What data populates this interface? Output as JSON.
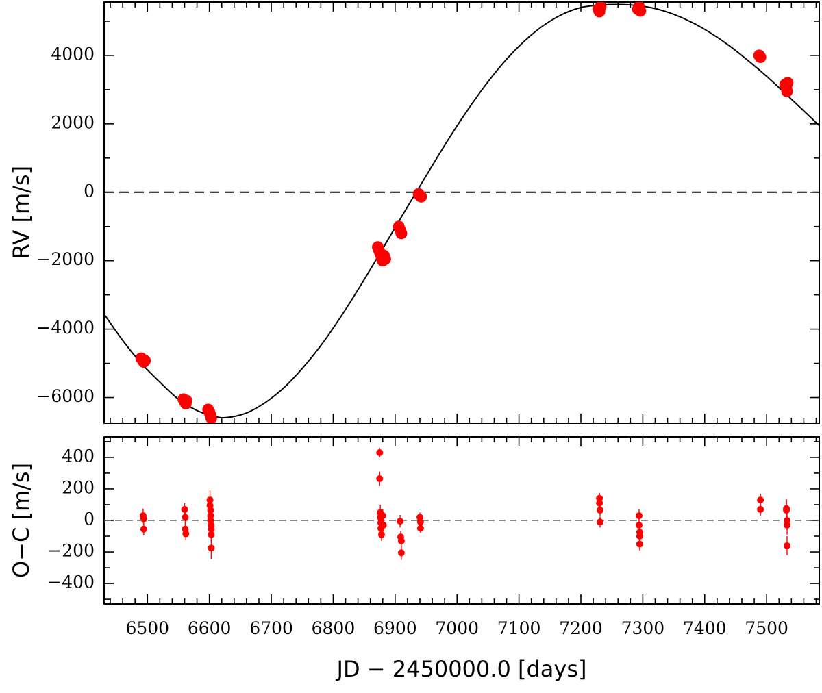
{
  "chart_data": [
    {
      "type": "scatter",
      "panel": "rv",
      "title": "",
      "ylabel": "RV [m/s]",
      "xlabel": "",
      "xlim": [
        6430,
        7585
      ],
      "ylim": [
        -6750,
        5560
      ],
      "y_ticks": [
        -6000,
        -4000,
        -2000,
        0,
        2000,
        4000
      ],
      "y_tick_labels": [
        "−6000",
        "−4000",
        "−2000",
        "0",
        "2000",
        "4000"
      ],
      "x_tick_labels_shown": false,
      "reference_line": {
        "y": 0,
        "style": "dashed",
        "color": "#000000"
      },
      "model_curve": {
        "type": "line",
        "shape": "sinusoid",
        "color": "#000000",
        "points": [
          [
            6430,
            -3560
          ],
          [
            6460,
            -4330
          ],
          [
            6490,
            -5000
          ],
          [
            6520,
            -5550
          ],
          [
            6550,
            -6050
          ],
          [
            6580,
            -6380
          ],
          [
            6610,
            -6560
          ],
          [
            6630,
            -6580
          ],
          [
            6660,
            -6450
          ],
          [
            6690,
            -6150
          ],
          [
            6720,
            -5720
          ],
          [
            6750,
            -5150
          ],
          [
            6780,
            -4480
          ],
          [
            6810,
            -3700
          ],
          [
            6840,
            -2850
          ],
          [
            6870,
            -1950
          ],
          [
            6900,
            -1030
          ],
          [
            6930,
            -120
          ],
          [
            6960,
            780
          ],
          [
            6990,
            1660
          ],
          [
            7020,
            2480
          ],
          [
            7050,
            3230
          ],
          [
            7080,
            3890
          ],
          [
            7110,
            4440
          ],
          [
            7140,
            4880
          ],
          [
            7170,
            5200
          ],
          [
            7200,
            5400
          ],
          [
            7230,
            5470
          ],
          [
            7260,
            5490
          ],
          [
            7290,
            5460
          ],
          [
            7320,
            5370
          ],
          [
            7350,
            5200
          ],
          [
            7380,
            4960
          ],
          [
            7410,
            4650
          ],
          [
            7440,
            4280
          ],
          [
            7470,
            3850
          ],
          [
            7500,
            3390
          ],
          [
            7530,
            2890
          ],
          [
            7560,
            2380
          ],
          [
            7585,
            1950
          ]
        ]
      },
      "points": [
        {
          "x": 6490,
          "y": -4850
        },
        {
          "x": 6492,
          "y": -4900
        },
        {
          "x": 6494,
          "y": -4960
        },
        {
          "x": 6496,
          "y": -4920
        },
        {
          "x": 6558,
          "y": -6050
        },
        {
          "x": 6560,
          "y": -6120
        },
        {
          "x": 6562,
          "y": -6180
        },
        {
          "x": 6563,
          "y": -6090
        },
        {
          "x": 6598,
          "y": -6350
        },
        {
          "x": 6600,
          "y": -6420
        },
        {
          "x": 6601,
          "y": -6480
        },
        {
          "x": 6602,
          "y": -6530
        },
        {
          "x": 6603,
          "y": -6600
        },
        {
          "x": 6872,
          "y": -1600
        },
        {
          "x": 6874,
          "y": -1700
        },
        {
          "x": 6876,
          "y": -1800
        },
        {
          "x": 6878,
          "y": -1900
        },
        {
          "x": 6880,
          "y": -2000
        },
        {
          "x": 6882,
          "y": -1850
        },
        {
          "x": 6884,
          "y": -1950
        },
        {
          "x": 6906,
          "y": -1000
        },
        {
          "x": 6908,
          "y": -1100
        },
        {
          "x": 6910,
          "y": -1200
        },
        {
          "x": 6938,
          "y": -50
        },
        {
          "x": 6940,
          "y": -100
        },
        {
          "x": 6942,
          "y": -130
        },
        {
          "x": 7228,
          "y": 5350
        },
        {
          "x": 7230,
          "y": 5280
        },
        {
          "x": 7232,
          "y": 5420
        },
        {
          "x": 7292,
          "y": 5350
        },
        {
          "x": 7294,
          "y": 5420
        },
        {
          "x": 7296,
          "y": 5300
        },
        {
          "x": 7488,
          "y": 4000
        },
        {
          "x": 7490,
          "y": 3950
        },
        {
          "x": 7530,
          "y": 3150
        },
        {
          "x": 7532,
          "y": 3050
        },
        {
          "x": 7533,
          "y": 2950
        },
        {
          "x": 7534,
          "y": 3200
        }
      ],
      "point_color": "#ff0000"
    },
    {
      "type": "scatter",
      "panel": "residuals",
      "title": "",
      "ylabel": "O−C [m/s]",
      "xlabel": "JD − 2450000.0 [days]",
      "xlim": [
        6430,
        7585
      ],
      "ylim": [
        -530,
        530
      ],
      "x_ticks": [
        6500,
        6600,
        6700,
        6800,
        6900,
        7000,
        7100,
        7200,
        7300,
        7400,
        7500
      ],
      "x_tick_labels": [
        "6500",
        "6600",
        "6700",
        "6800",
        "6900",
        "7000",
        "7100",
        "7200",
        "7300",
        "7400",
        "7500"
      ],
      "y_ticks": [
        -400,
        -200,
        0,
        200,
        400
      ],
      "y_tick_labels": [
        "−400",
        "−200",
        "0",
        "200",
        "400"
      ],
      "reference_line": {
        "y": 0,
        "style": "dashed",
        "color": "#666666"
      },
      "points": [
        {
          "x": 6493,
          "y": 30,
          "err": 45
        },
        {
          "x": 6494,
          "y": 10,
          "err": 40
        },
        {
          "x": 6494,
          "y": -55,
          "err": 40
        },
        {
          "x": 6560,
          "y": 70,
          "err": 40
        },
        {
          "x": 6561,
          "y": 20,
          "err": 40
        },
        {
          "x": 6561,
          "y": -55,
          "err": 40
        },
        {
          "x": 6562,
          "y": -85,
          "err": 40
        },
        {
          "x": 6601,
          "y": 130,
          "err": 60
        },
        {
          "x": 6601,
          "y": 95,
          "err": 50
        },
        {
          "x": 6602,
          "y": 65,
          "err": 50
        },
        {
          "x": 6602,
          "y": 30,
          "err": 50
        },
        {
          "x": 6602,
          "y": 0,
          "err": 50
        },
        {
          "x": 6603,
          "y": -30,
          "err": 50
        },
        {
          "x": 6603,
          "y": -55,
          "err": 50
        },
        {
          "x": 6603,
          "y": -90,
          "err": 50
        },
        {
          "x": 6603,
          "y": -175,
          "err": 70
        },
        {
          "x": 6875,
          "y": 430,
          "err": 30
        },
        {
          "x": 6875,
          "y": 265,
          "err": 45
        },
        {
          "x": 6876,
          "y": 50,
          "err": 50
        },
        {
          "x": 6876,
          "y": 20,
          "err": 40
        },
        {
          "x": 6877,
          "y": -15,
          "err": 40
        },
        {
          "x": 6877,
          "y": -50,
          "err": 40
        },
        {
          "x": 6878,
          "y": -90,
          "err": 40
        },
        {
          "x": 6880,
          "y": 30,
          "err": 40
        },
        {
          "x": 6881,
          "y": -30,
          "err": 40
        },
        {
          "x": 6908,
          "y": -5,
          "err": 40
        },
        {
          "x": 6909,
          "y": -105,
          "err": 40
        },
        {
          "x": 6910,
          "y": -130,
          "err": 40
        },
        {
          "x": 6910,
          "y": -205,
          "err": 45
        },
        {
          "x": 6940,
          "y": 20,
          "err": 30
        },
        {
          "x": 6941,
          "y": -10,
          "err": 30
        },
        {
          "x": 6941,
          "y": -50,
          "err": 30
        },
        {
          "x": 7230,
          "y": 140,
          "err": 35
        },
        {
          "x": 7230,
          "y": 110,
          "err": 35
        },
        {
          "x": 7231,
          "y": 65,
          "err": 35
        },
        {
          "x": 7231,
          "y": -10,
          "err": 35
        },
        {
          "x": 7294,
          "y": 30,
          "err": 40
        },
        {
          "x": 7294,
          "y": -30,
          "err": 40
        },
        {
          "x": 7295,
          "y": -75,
          "err": 40
        },
        {
          "x": 7295,
          "y": -100,
          "err": 40
        },
        {
          "x": 7295,
          "y": -150,
          "err": 40
        },
        {
          "x": 7490,
          "y": 130,
          "err": 40
        },
        {
          "x": 7490,
          "y": 70,
          "err": 40
        },
        {
          "x": 7532,
          "y": 75,
          "err": 60
        },
        {
          "x": 7532,
          "y": 65,
          "err": 60
        },
        {
          "x": 7533,
          "y": 0,
          "err": 60
        },
        {
          "x": 7533,
          "y": -30,
          "err": 60
        },
        {
          "x": 7533,
          "y": -160,
          "err": 60
        }
      ],
      "point_color": "#ff0000"
    }
  ]
}
